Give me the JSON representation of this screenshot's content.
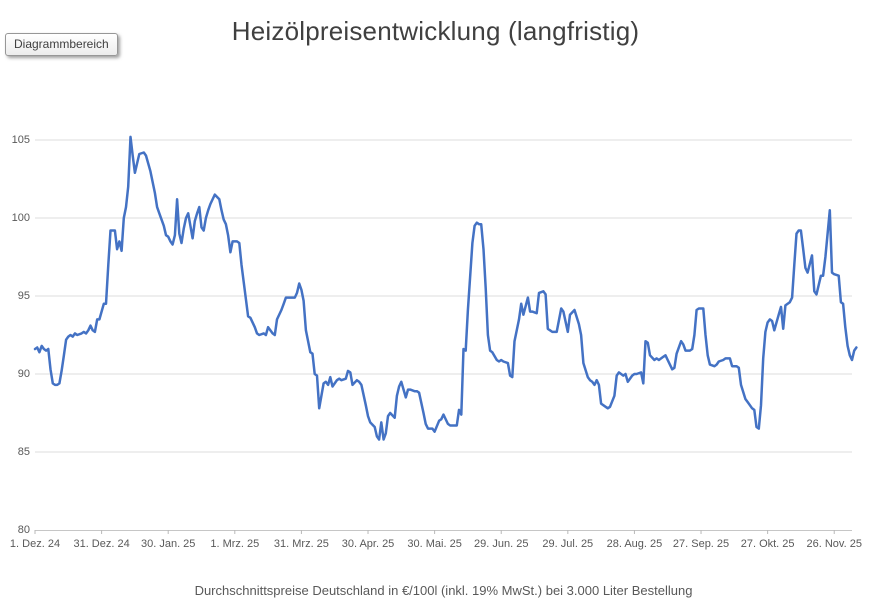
{
  "tooltip": {
    "label": "Diagrammbereich"
  },
  "chart_data": {
    "type": "line",
    "title": "Heizölpreisentwicklung (langfristig)",
    "footnote": "Durchschnittspreise Deutschland in €/100l (inkl. 19% MwSt.) bei 3.000 Liter Bestellung",
    "line_color": "#4472C4",
    "grid": true,
    "legend": "none",
    "ylim": [
      80,
      106.5
    ],
    "y_ticks": [
      80,
      85,
      90,
      95,
      100,
      105
    ],
    "x_tick_labels": [
      "1. Dez. 24",
      "31. Dez. 24",
      "30. Jan. 25",
      "1. Mrz. 25",
      "31. Mrz. 25",
      "30. Apr. 25",
      "30. Mai. 25",
      "29. Jun. 25",
      "29. Jul. 25",
      "28. Aug. 25",
      "27. Sep. 25",
      "27. Okt. 25",
      "26. Nov. 25"
    ],
    "x_tick_interval_days": 30,
    "x_axis_span_days": 368,
    "x_unit": "Datum",
    "y_unit": "€/100l",
    "points": [
      [
        0,
        91.6
      ],
      [
        1,
        91.7
      ],
      [
        2,
        91.4
      ],
      [
        3,
        91.8
      ],
      [
        4,
        91.6
      ],
      [
        5,
        91.5
      ],
      [
        6,
        91.6
      ],
      [
        7,
        90.3
      ],
      [
        8,
        89.4
      ],
      [
        9,
        89.3
      ],
      [
        10,
        89.3
      ],
      [
        11,
        89.4
      ],
      [
        12,
        90.2
      ],
      [
        13,
        91.2
      ],
      [
        14,
        92.2
      ],
      [
        15,
        92.4
      ],
      [
        16,
        92.5
      ],
      [
        17,
        92.4
      ],
      [
        18,
        92.6
      ],
      [
        19,
        92.5
      ],
      [
        21,
        92.6
      ],
      [
        22,
        92.7
      ],
      [
        23,
        92.6
      ],
      [
        24,
        92.8
      ],
      [
        25,
        93.1
      ],
      [
        26,
        92.8
      ],
      [
        27,
        92.7
      ],
      [
        28,
        93.5
      ],
      [
        29,
        93.5
      ],
      [
        31,
        94.5
      ],
      [
        32,
        94.5
      ],
      [
        33,
        97.0
      ],
      [
        34,
        99.2
      ],
      [
        36,
        99.2
      ],
      [
        37,
        98.0
      ],
      [
        38,
        98.5
      ],
      [
        39,
        97.9
      ],
      [
        40,
        100.0
      ],
      [
        41,
        100.7
      ],
      [
        42,
        102.0
      ],
      [
        43,
        105.2
      ],
      [
        44,
        104.0
      ],
      [
        45,
        102.9
      ],
      [
        46,
        103.5
      ],
      [
        47,
        104.1
      ],
      [
        49,
        104.2
      ],
      [
        50,
        104.0
      ],
      [
        52,
        103.0
      ],
      [
        54,
        101.6
      ],
      [
        55,
        100.7
      ],
      [
        56,
        100.3
      ],
      [
        58,
        99.5
      ],
      [
        59,
        98.9
      ],
      [
        60,
        98.8
      ],
      [
        61,
        98.5
      ],
      [
        62,
        98.3
      ],
      [
        63,
        98.9
      ],
      [
        64,
        101.2
      ],
      [
        65,
        99.0
      ],
      [
        66,
        98.4
      ],
      [
        67,
        99.3
      ],
      [
        68,
        100.0
      ],
      [
        69,
        100.3
      ],
      [
        70,
        99.5
      ],
      [
        71,
        98.7
      ],
      [
        72,
        99.8
      ],
      [
        73,
        100.3
      ],
      [
        74,
        100.7
      ],
      [
        75,
        99.4
      ],
      [
        76,
        99.2
      ],
      [
        77,
        100.0
      ],
      [
        78,
        100.5
      ],
      [
        79,
        100.9
      ],
      [
        81,
        101.5
      ],
      [
        83,
        101.2
      ],
      [
        84,
        100.5
      ],
      [
        85,
        99.9
      ],
      [
        86,
        99.6
      ],
      [
        87,
        98.9
      ],
      [
        88,
        97.8
      ],
      [
        89,
        98.5
      ],
      [
        91,
        98.5
      ],
      [
        92,
        98.4
      ],
      [
        93,
        97.0
      ],
      [
        94,
        95.9
      ],
      [
        95,
        94.8
      ],
      [
        96,
        93.7
      ],
      [
        97,
        93.6
      ],
      [
        99,
        93.0
      ],
      [
        100,
        92.6
      ],
      [
        101,
        92.5
      ],
      [
        103,
        92.6
      ],
      [
        104,
        92.5
      ],
      [
        105,
        93.0
      ],
      [
        107,
        92.6
      ],
      [
        108,
        92.5
      ],
      [
        109,
        93.5
      ],
      [
        111,
        94.1
      ],
      [
        112,
        94.5
      ],
      [
        113,
        94.9
      ],
      [
        115,
        94.9
      ],
      [
        117,
        94.9
      ],
      [
        118,
        95.2
      ],
      [
        119,
        95.8
      ],
      [
        120,
        95.4
      ],
      [
        121,
        94.7
      ],
      [
        122,
        92.8
      ],
      [
        124,
        91.4
      ],
      [
        125,
        91.3
      ],
      [
        126,
        90.0
      ],
      [
        127,
        89.9
      ],
      [
        128,
        87.8
      ],
      [
        130,
        89.4
      ],
      [
        131,
        89.5
      ],
      [
        132,
        89.3
      ],
      [
        133,
        89.8
      ],
      [
        134,
        89.2
      ],
      [
        136,
        89.6
      ],
      [
        137,
        89.7
      ],
      [
        138,
        89.6
      ],
      [
        140,
        89.7
      ],
      [
        141,
        90.2
      ],
      [
        142,
        90.1
      ],
      [
        143,
        89.3
      ],
      [
        145,
        89.6
      ],
      [
        146,
        89.5
      ],
      [
        147,
        89.3
      ],
      [
        149,
        88.0
      ],
      [
        150,
        87.3
      ],
      [
        151,
        86.9
      ],
      [
        153,
        86.6
      ],
      [
        154,
        86.0
      ],
      [
        155,
        85.8
      ],
      [
        156,
        86.9
      ],
      [
        157,
        85.8
      ],
      [
        158,
        86.2
      ],
      [
        159,
        87.3
      ],
      [
        160,
        87.5
      ],
      [
        162,
        87.2
      ],
      [
        163,
        88.6
      ],
      [
        164,
        89.2
      ],
      [
        165,
        89.5
      ],
      [
        167,
        88.5
      ],
      [
        168,
        89.0
      ],
      [
        169,
        89.0
      ],
      [
        171,
        88.9
      ],
      [
        172,
        88.9
      ],
      [
        173,
        88.8
      ],
      [
        175,
        87.5
      ],
      [
        176,
        86.8
      ],
      [
        177,
        86.5
      ],
      [
        179,
        86.5
      ],
      [
        180,
        86.3
      ],
      [
        182,
        87.0
      ],
      [
        183,
        87.1
      ],
      [
        184,
        87.4
      ],
      [
        186,
        86.8
      ],
      [
        187,
        86.7
      ],
      [
        188,
        86.7
      ],
      [
        190,
        86.7
      ],
      [
        191,
        87.7
      ],
      [
        192,
        87.4
      ],
      [
        193,
        91.6
      ],
      [
        194,
        91.5
      ],
      [
        195,
        94.1
      ],
      [
        196,
        96.2
      ],
      [
        197,
        98.4
      ],
      [
        198,
        99.5
      ],
      [
        199,
        99.7
      ],
      [
        200,
        99.6
      ],
      [
        201,
        99.6
      ],
      [
        202,
        98.0
      ],
      [
        203,
        95.5
      ],
      [
        204,
        92.5
      ],
      [
        205,
        91.5
      ],
      [
        206,
        91.4
      ],
      [
        208,
        90.9
      ],
      [
        209,
        90.8
      ],
      [
        210,
        90.9
      ],
      [
        211,
        90.8
      ],
      [
        213,
        90.7
      ],
      [
        214,
        89.9
      ],
      [
        215,
        89.8
      ],
      [
        216,
        92.1
      ],
      [
        218,
        93.5
      ],
      [
        219,
        94.5
      ],
      [
        220,
        93.8
      ],
      [
        222,
        94.9
      ],
      [
        223,
        94.0
      ],
      [
        224,
        94.0
      ],
      [
        226,
        93.9
      ],
      [
        227,
        95.2
      ],
      [
        229,
        95.3
      ],
      [
        230,
        95.1
      ],
      [
        231,
        92.9
      ],
      [
        233,
        92.7
      ],
      [
        235,
        92.7
      ],
      [
        237,
        94.2
      ],
      [
        238,
        94.0
      ],
      [
        240,
        92.7
      ],
      [
        241,
        93.8
      ],
      [
        243,
        94.1
      ],
      [
        245,
        93.2
      ],
      [
        246,
        92.5
      ],
      [
        247,
        90.7
      ],
      [
        249,
        89.8
      ],
      [
        250,
        89.6
      ],
      [
        251,
        89.5
      ],
      [
        252,
        89.3
      ],
      [
        253,
        89.6
      ],
      [
        254,
        89.3
      ],
      [
        255,
        88.1
      ],
      [
        257,
        87.9
      ],
      [
        258,
        87.8
      ],
      [
        259,
        87.9
      ],
      [
        261,
        88.6
      ],
      [
        262,
        89.9
      ],
      [
        263,
        90.1
      ],
      [
        265,
        89.9
      ],
      [
        266,
        90.0
      ],
      [
        267,
        89.5
      ],
      [
        269,
        89.9
      ],
      [
        270,
        90.0
      ],
      [
        271,
        90.0
      ],
      [
        273,
        90.1
      ],
      [
        274,
        89.4
      ],
      [
        275,
        92.1
      ],
      [
        276,
        92.0
      ],
      [
        277,
        91.2
      ],
      [
        279,
        90.9
      ],
      [
        280,
        91.0
      ],
      [
        281,
        90.9
      ],
      [
        283,
        91.1
      ],
      [
        284,
        91.2
      ],
      [
        285,
        90.9
      ],
      [
        287,
        90.3
      ],
      [
        288,
        90.4
      ],
      [
        289,
        91.3
      ],
      [
        291,
        92.1
      ],
      [
        292,
        91.9
      ],
      [
        293,
        91.5
      ],
      [
        295,
        91.5
      ],
      [
        296,
        91.6
      ],
      [
        297,
        92.5
      ],
      [
        298,
        94.1
      ],
      [
        299,
        94.2
      ],
      [
        301,
        94.2
      ],
      [
        302,
        92.5
      ],
      [
        303,
        91.2
      ],
      [
        304,
        90.6
      ],
      [
        306,
        90.5
      ],
      [
        307,
        90.6
      ],
      [
        308,
        90.8
      ],
      [
        310,
        90.9
      ],
      [
        311,
        91.0
      ],
      [
        313,
        91.0
      ],
      [
        314,
        90.5
      ],
      [
        316,
        90.5
      ],
      [
        317,
        90.4
      ],
      [
        318,
        89.3
      ],
      [
        320,
        88.4
      ],
      [
        321,
        88.2
      ],
      [
        322,
        88.0
      ],
      [
        323,
        87.8
      ],
      [
        324,
        87.7
      ],
      [
        325,
        86.6
      ],
      [
        326,
        86.5
      ],
      [
        327,
        88.0
      ],
      [
        328,
        91.0
      ],
      [
        329,
        92.7
      ],
      [
        330,
        93.3
      ],
      [
        331,
        93.5
      ],
      [
        332,
        93.4
      ],
      [
        333,
        92.8
      ],
      [
        335,
        93.8
      ],
      [
        336,
        94.3
      ],
      [
        337,
        92.9
      ],
      [
        338,
        94.4
      ],
      [
        340,
        94.6
      ],
      [
        341,
        94.9
      ],
      [
        342,
        97.0
      ],
      [
        343,
        99.0
      ],
      [
        344,
        99.2
      ],
      [
        345,
        99.2
      ],
      [
        346,
        98.0
      ],
      [
        347,
        96.8
      ],
      [
        348,
        96.5
      ],
      [
        350,
        97.6
      ],
      [
        351,
        95.3
      ],
      [
        352,
        95.1
      ],
      [
        354,
        96.3
      ],
      [
        355,
        96.3
      ],
      [
        356,
        97.5
      ],
      [
        358,
        100.5
      ],
      [
        359,
        96.5
      ],
      [
        360,
        96.4
      ],
      [
        362,
        96.3
      ],
      [
        363,
        94.6
      ],
      [
        364,
        94.5
      ],
      [
        365,
        93.0
      ],
      [
        366,
        91.8
      ],
      [
        367,
        91.2
      ],
      [
        368,
        90.9
      ],
      [
        369,
        91.5
      ],
      [
        370,
        91.7
      ]
    ]
  }
}
